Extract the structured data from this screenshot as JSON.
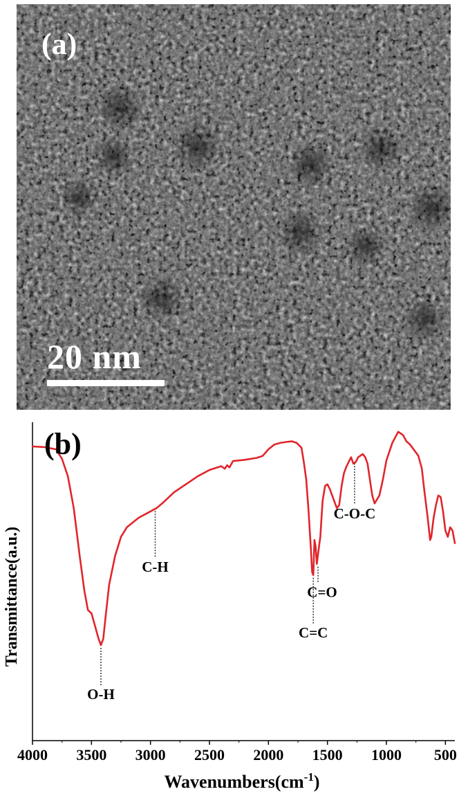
{
  "panel_a": {
    "label": "(a)",
    "scale_bar_text": "20 nm",
    "background_color": "#4a4a4a"
  },
  "panel_b": {
    "label": "(b)",
    "line_color": "#e0252b"
  },
  "chart_data": {
    "type": "line",
    "title": "",
    "xlabel": "Wavenumbers(cm",
    "xlabel_superscript": "-1",
    "xlabel_suffix": ")",
    "ylabel": "Transmittance(a.u.)",
    "xlim": [
      4000,
      420
    ],
    "x_reversed": true,
    "y_units": "arbitrary (relative transmittance, 0 = bottom of frame, 1 = top)",
    "ylim": [
      0,
      1
    ],
    "xticks": [
      4000,
      3500,
      3000,
      2500,
      2000,
      1500,
      1000,
      500
    ],
    "y_tick_labels": false,
    "grid": false,
    "series": [
      {
        "name": "",
        "x": [
          4000,
          3900,
          3800,
          3750,
          3700,
          3650,
          3600,
          3560,
          3530,
          3500,
          3470,
          3440,
          3420,
          3400,
          3380,
          3350,
          3300,
          3250,
          3200,
          3100,
          3000,
          2950,
          2900,
          2800,
          2700,
          2600,
          2500,
          2400,
          2370,
          2350,
          2330,
          2300,
          2200,
          2100,
          2050,
          2000,
          1950,
          1900,
          1850,
          1800,
          1760,
          1720,
          1700,
          1680,
          1660,
          1640,
          1630,
          1620,
          1610,
          1600,
          1590,
          1575,
          1560,
          1550,
          1540,
          1520,
          1500,
          1480,
          1460,
          1440,
          1420,
          1400,
          1380,
          1360,
          1340,
          1300,
          1280,
          1260,
          1240,
          1200,
          1180,
          1160,
          1140,
          1120,
          1100,
          1060,
          1030,
          1000,
          950,
          900,
          860,
          830,
          800,
          760,
          730,
          700,
          680,
          650,
          630,
          620,
          600,
          580,
          560,
          540,
          520,
          500,
          480,
          460,
          440,
          420
        ],
        "y": [
          0.924,
          0.922,
          0.915,
          0.885,
          0.83,
          0.73,
          0.58,
          0.47,
          0.41,
          0.4,
          0.36,
          0.32,
          0.3,
          0.32,
          0.39,
          0.49,
          0.58,
          0.64,
          0.67,
          0.7,
          0.72,
          0.73,
          0.745,
          0.78,
          0.805,
          0.83,
          0.85,
          0.862,
          0.854,
          0.865,
          0.858,
          0.878,
          0.882,
          0.888,
          0.894,
          0.915,
          0.93,
          0.935,
          0.938,
          0.94,
          0.935,
          0.92,
          0.875,
          0.82,
          0.72,
          0.6,
          0.53,
          0.52,
          0.63,
          0.61,
          0.555,
          0.6,
          0.64,
          0.7,
          0.755,
          0.8,
          0.805,
          0.79,
          0.77,
          0.75,
          0.73,
          0.74,
          0.8,
          0.84,
          0.86,
          0.89,
          0.87,
          0.875,
          0.89,
          0.9,
          0.89,
          0.87,
          0.82,
          0.77,
          0.745,
          0.77,
          0.82,
          0.88,
          0.935,
          0.97,
          0.96,
          0.94,
          0.93,
          0.91,
          0.895,
          0.855,
          0.79,
          0.7,
          0.63,
          0.64,
          0.7,
          0.74,
          0.77,
          0.765,
          0.72,
          0.66,
          0.64,
          0.67,
          0.66,
          0.62
        ]
      }
    ],
    "annotations": [
      {
        "text": "O-H",
        "x": 3420,
        "y": 0.3
      },
      {
        "text": "C-H",
        "x": 2960,
        "y": 0.73
      },
      {
        "text": "C=C",
        "x": 1620,
        "y": 0.52
      },
      {
        "text": "C=O",
        "x": 1580,
        "y": 0.555
      },
      {
        "text": "C-O-C",
        "x": 1270,
        "y": 0.88
      }
    ]
  }
}
